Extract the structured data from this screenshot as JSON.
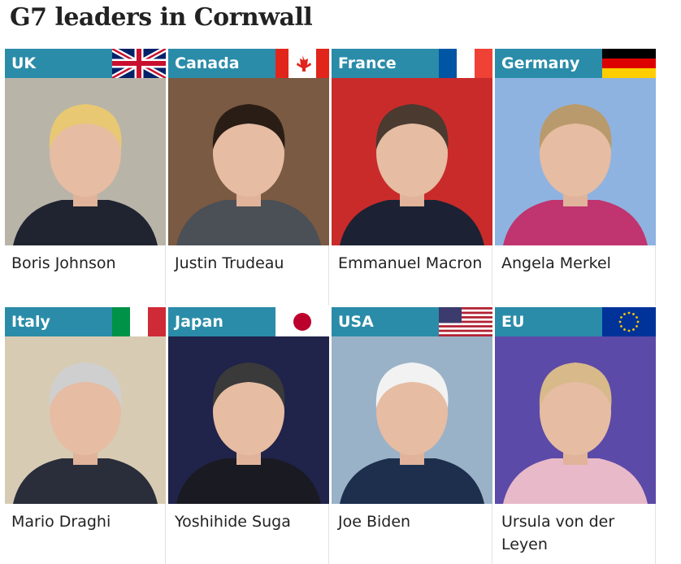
{
  "title": "G7 leaders in Cornwall",
  "leaders": [
    {
      "country": "UK",
      "name": "Boris Johnson"
    },
    {
      "country": "Canada",
      "name": "Justin Trudeau"
    },
    {
      "country": "France",
      "name": "Emmanuel Macron"
    },
    {
      "country": "Germany",
      "name": "Angela Merkel"
    },
    {
      "country": "Italy",
      "name": "Mario Draghi"
    },
    {
      "country": "Japan",
      "name": "Yoshihide Suga"
    },
    {
      "country": "USA",
      "name": "Joe Biden"
    },
    {
      "country": "EU",
      "name": "Ursula von der Leyen"
    }
  ]
}
